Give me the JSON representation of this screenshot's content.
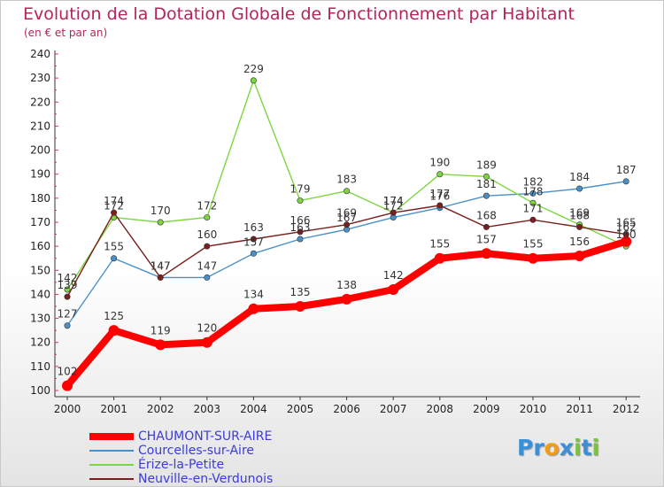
{
  "chart_data": {
    "type": "line",
    "title": "Evolution de la Dotation Globale de Fonctionnement par Habitant",
    "subtitle": "(en € et par an)",
    "xlabel": "",
    "ylabel": "",
    "categories": [
      "2000",
      "2001",
      "2002",
      "2003",
      "2004",
      "2005",
      "2006",
      "2007",
      "2008",
      "2009",
      "2010",
      "2011",
      "2012"
    ],
    "ylim": [
      100,
      240
    ],
    "yticks": [
      "100",
      "110",
      "120",
      "130",
      "140",
      "150",
      "160",
      "170",
      "180",
      "190",
      "200",
      "210",
      "220",
      "230",
      "240"
    ],
    "grid": false,
    "legend_position": "bottom-left",
    "series": [
      {
        "name": "Courcelles-sur-Aire",
        "color": "#4a90c8",
        "values": [
          127,
          155,
          147,
          147,
          157,
          163,
          167,
          172,
          176,
          181,
          182,
          184,
          187
        ]
      },
      {
        "name": "Érize-la-Petite",
        "color": "#7cd642",
        "values": [
          142,
          172,
          170,
          172,
          229,
          179,
          183,
          174,
          190,
          189,
          178,
          169,
          160
        ]
      },
      {
        "name": "Neuville-en-Verdunois",
        "color": "#7a1e1e",
        "values": [
          139,
          174,
          147,
          160,
          163,
          166,
          169,
          174,
          177,
          168,
          171,
          168,
          165
        ]
      },
      {
        "name": "CHAUMONT-SUR-AIRE",
        "color": "#ff0000",
        "values": [
          102,
          125,
          119,
          120,
          134,
          135,
          138,
          142,
          155,
          157,
          155,
          156,
          162
        ]
      }
    ],
    "legend_order": [
      "CHAUMONT-SUR-AIRE",
      "Courcelles-sur-Aire",
      "Érize-la-Petite",
      "Neuville-en-Verdunois"
    ]
  },
  "logo": {
    "text": "Proxiti",
    "letters": [
      "P",
      "r",
      "o",
      "x",
      "i",
      "t",
      "i"
    ],
    "colors": [
      "#3a8fd8",
      "#3a8fd8",
      "#f39c12",
      "#3a8fd8",
      "#7cc242",
      "#3a8fd8",
      "#7cc242"
    ]
  }
}
